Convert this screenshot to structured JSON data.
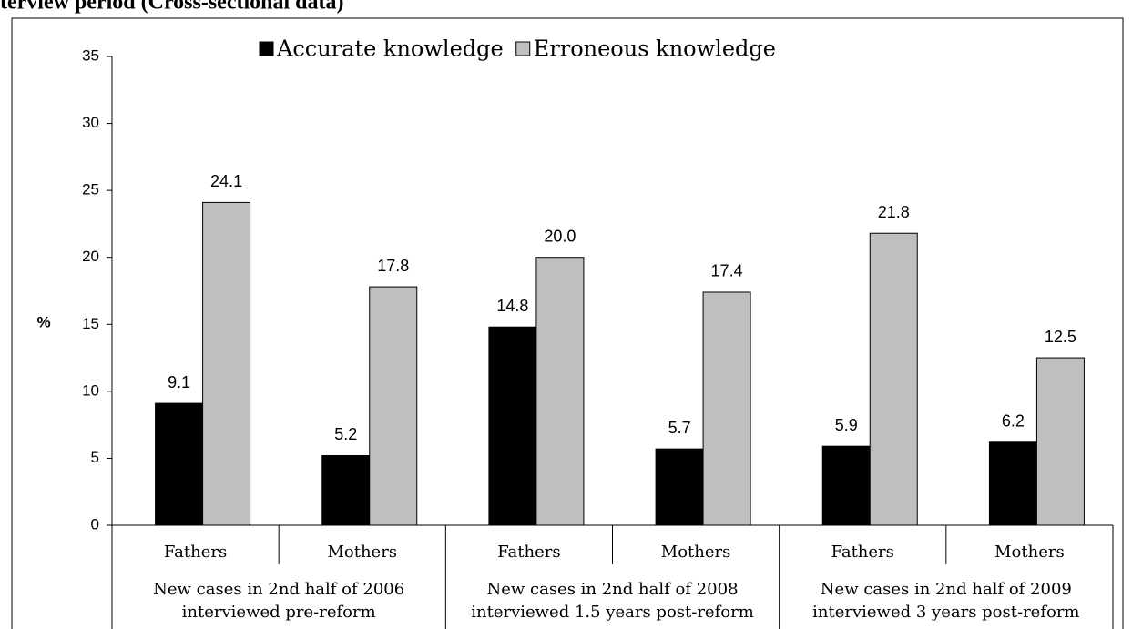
{
  "chart_data": {
    "type": "bar",
    "title": "terview period (Cross-sectional data)",
    "ylabel": "%",
    "categories": [
      "Fathers",
      "Mothers",
      "Fathers",
      "Mothers",
      "Fathers",
      "Mothers"
    ],
    "groups": [
      [
        "New cases in 2nd half of 2006",
        "interviewed pre-reform"
      ],
      [
        "New cases in 2nd half of 2008",
        "interviewed 1.5 years post-reform"
      ],
      [
        "New cases in 2nd half of 2009",
        "interviewed 3 years post-reform"
      ]
    ],
    "series": [
      {
        "name": "Accurate knowledge",
        "color": "#000000",
        "values": [
          9.1,
          5.2,
          14.8,
          5.7,
          5.9,
          6.2
        ],
        "value_labels": [
          "9.1",
          "5.2",
          "14.8",
          "5.7",
          "5.9",
          "6.2"
        ]
      },
      {
        "name": "Erroneous knowledge",
        "color": "#bfbfbf",
        "values": [
          24.1,
          17.8,
          20.0,
          17.4,
          21.8,
          12.5
        ],
        "value_labels": [
          "24.1",
          "17.8",
          "20.0",
          "17.4",
          "21.8",
          "12.5"
        ]
      }
    ],
    "ylim": [
      0,
      35
    ],
    "yticks": [
      0,
      5,
      10,
      15,
      20,
      25,
      30,
      35
    ],
    "legend": "top"
  }
}
